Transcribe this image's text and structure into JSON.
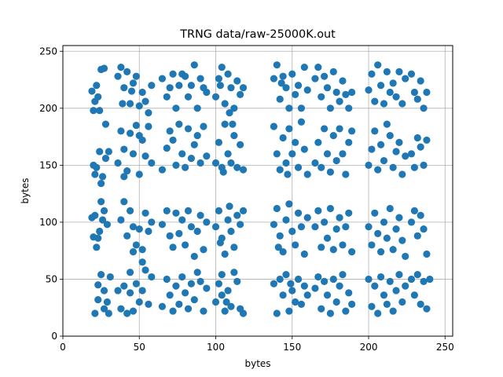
{
  "chart_data": {
    "type": "scatter",
    "title": "TRNG data/raw-25000K.out",
    "xlabel": "bytes",
    "ylabel": "bytes",
    "xlim": [
      0,
      255
    ],
    "ylim": [
      0,
      255
    ],
    "xticks": [
      0,
      50,
      100,
      150,
      200,
      250
    ],
    "yticks": [
      0,
      50,
      100,
      150,
      200,
      250
    ],
    "grid": true,
    "marker_color": "#1f77b4",
    "points": [
      [
        19,
        215
      ],
      [
        21,
        206
      ],
      [
        22,
        220
      ],
      [
        24,
        198
      ],
      [
        25,
        234
      ],
      [
        27,
        235
      ],
      [
        20,
        198
      ],
      [
        23,
        210
      ],
      [
        28,
        186
      ],
      [
        20,
        150
      ],
      [
        22,
        148
      ],
      [
        24,
        162
      ],
      [
        26,
        140
      ],
      [
        28,
        156
      ],
      [
        30,
        162
      ],
      [
        25,
        134
      ],
      [
        21,
        142
      ],
      [
        19,
        104
      ],
      [
        21,
        106
      ],
      [
        23,
        86
      ],
      [
        25,
        118
      ],
      [
        27,
        110
      ],
      [
        29,
        98
      ],
      [
        22,
        78
      ],
      [
        24,
        92
      ],
      [
        26,
        102
      ],
      [
        20,
        87
      ],
      [
        21,
        20
      ],
      [
        23,
        45
      ],
      [
        25,
        54
      ],
      [
        27,
        40
      ],
      [
        29,
        30
      ],
      [
        31,
        52
      ],
      [
        23,
        32
      ],
      [
        30,
        20
      ],
      [
        27,
        24
      ],
      [
        36,
        228
      ],
      [
        38,
        236
      ],
      [
        40,
        218
      ],
      [
        42,
        232
      ],
      [
        44,
        204
      ],
      [
        46,
        222
      ],
      [
        48,
        228
      ],
      [
        52,
        214
      ],
      [
        54,
        206
      ],
      [
        56,
        196
      ],
      [
        58,
        220
      ],
      [
        39,
        204
      ],
      [
        45,
        215
      ],
      [
        50,
        202
      ],
      [
        36,
        152
      ],
      [
        38,
        180
      ],
      [
        40,
        164
      ],
      [
        42,
        145
      ],
      [
        44,
        178
      ],
      [
        46,
        160
      ],
      [
        48,
        185
      ],
      [
        50,
        176
      ],
      [
        52,
        172
      ],
      [
        54,
        158
      ],
      [
        56,
        184
      ],
      [
        58,
        152
      ],
      [
        40,
        140
      ],
      [
        50,
        142
      ],
      [
        38,
        102
      ],
      [
        40,
        118
      ],
      [
        42,
        88
      ],
      [
        44,
        110
      ],
      [
        46,
        96
      ],
      [
        48,
        80
      ],
      [
        50,
        94
      ],
      [
        52,
        76
      ],
      [
        54,
        108
      ],
      [
        56,
        92
      ],
      [
        58,
        100
      ],
      [
        46,
        74
      ],
      [
        52,
        65
      ],
      [
        36,
        40
      ],
      [
        38,
        24
      ],
      [
        40,
        44
      ],
      [
        42,
        20
      ],
      [
        44,
        38
      ],
      [
        46,
        22
      ],
      [
        48,
        46
      ],
      [
        50,
        30
      ],
      [
        52,
        40
      ],
      [
        54,
        58
      ],
      [
        56,
        28
      ],
      [
        58,
        52
      ],
      [
        44,
        56
      ],
      [
        65,
        226
      ],
      [
        68,
        210
      ],
      [
        70,
        218
      ],
      [
        72,
        230
      ],
      [
        74,
        200
      ],
      [
        76,
        220
      ],
      [
        78,
        230
      ],
      [
        80,
        228
      ],
      [
        82,
        210
      ],
      [
        84,
        220
      ],
      [
        86,
        238
      ],
      [
        88,
        200
      ],
      [
        90,
        226
      ],
      [
        92,
        218
      ],
      [
        94,
        214
      ],
      [
        65,
        146
      ],
      [
        68,
        165
      ],
      [
        70,
        180
      ],
      [
        72,
        172
      ],
      [
        74,
        150
      ],
      [
        76,
        186
      ],
      [
        78,
        160
      ],
      [
        80,
        148
      ],
      [
        82,
        182
      ],
      [
        84,
        156
      ],
      [
        86,
        168
      ],
      [
        88,
        176
      ],
      [
        90,
        152
      ],
      [
        92,
        184
      ],
      [
        94,
        158
      ],
      [
        65,
        98
      ],
      [
        68,
        110
      ],
      [
        70,
        88
      ],
      [
        72,
        78
      ],
      [
        74,
        108
      ],
      [
        76,
        90
      ],
      [
        78,
        102
      ],
      [
        80,
        80
      ],
      [
        82,
        110
      ],
      [
        84,
        96
      ],
      [
        86,
        70
      ],
      [
        88,
        92
      ],
      [
        90,
        106
      ],
      [
        92,
        76
      ],
      [
        94,
        100
      ],
      [
        65,
        26
      ],
      [
        68,
        50
      ],
      [
        70,
        36
      ],
      [
        72,
        22
      ],
      [
        74,
        44
      ],
      [
        76,
        28
      ],
      [
        78,
        52
      ],
      [
        80,
        38
      ],
      [
        82,
        24
      ],
      [
        84,
        46
      ],
      [
        86,
        32
      ],
      [
        88,
        56
      ],
      [
        90,
        48
      ],
      [
        92,
        22
      ],
      [
        94,
        42
      ],
      [
        100,
        210
      ],
      [
        102,
        226
      ],
      [
        104,
        236
      ],
      [
        106,
        204
      ],
      [
        108,
        230
      ],
      [
        110,
        218
      ],
      [
        112,
        200
      ],
      [
        114,
        224
      ],
      [
        116,
        212
      ],
      [
        118,
        218
      ],
      [
        103,
        220
      ],
      [
        109,
        196
      ],
      [
        100,
        152
      ],
      [
        102,
        170
      ],
      [
        104,
        148
      ],
      [
        106,
        186
      ],
      [
        108,
        160
      ],
      [
        110,
        152
      ],
      [
        112,
        176
      ],
      [
        114,
        148
      ],
      [
        116,
        168
      ],
      [
        118,
        146
      ],
      [
        105,
        144
      ],
      [
        111,
        186
      ],
      [
        100,
        96
      ],
      [
        102,
        110
      ],
      [
        104,
        86
      ],
      [
        106,
        72
      ],
      [
        108,
        102
      ],
      [
        110,
        92
      ],
      [
        112,
        78
      ],
      [
        114,
        106
      ],
      [
        116,
        98
      ],
      [
        118,
        110
      ],
      [
        103,
        82
      ],
      [
        109,
        114
      ],
      [
        100,
        30
      ],
      [
        102,
        46
      ],
      [
        104,
        54
      ],
      [
        106,
        22
      ],
      [
        108,
        40
      ],
      [
        110,
        26
      ],
      [
        112,
        56
      ],
      [
        114,
        48
      ],
      [
        116,
        24
      ],
      [
        118,
        20
      ],
      [
        104,
        36
      ],
      [
        107,
        30
      ],
      [
        138,
        226
      ],
      [
        140,
        238
      ],
      [
        142,
        208
      ],
      [
        144,
        228
      ],
      [
        146,
        218
      ],
      [
        148,
        200
      ],
      [
        150,
        230
      ],
      [
        152,
        212
      ],
      [
        154,
        220
      ],
      [
        156,
        200
      ],
      [
        158,
        236
      ],
      [
        160,
        216
      ],
      [
        143,
        222
      ],
      [
        138,
        184
      ],
      [
        140,
        160
      ],
      [
        142,
        146
      ],
      [
        144,
        174
      ],
      [
        146,
        152
      ],
      [
        148,
        182
      ],
      [
        150,
        160
      ],
      [
        152,
        170
      ],
      [
        154,
        148
      ],
      [
        156,
        188
      ],
      [
        158,
        164
      ],
      [
        160,
        142
      ],
      [
        147,
        142
      ],
      [
        138,
        98
      ],
      [
        140,
        112
      ],
      [
        142,
        88
      ],
      [
        144,
        74
      ],
      [
        146,
        102
      ],
      [
        148,
        116
      ],
      [
        150,
        92
      ],
      [
        152,
        80
      ],
      [
        154,
        108
      ],
      [
        156,
        96
      ],
      [
        158,
        72
      ],
      [
        160,
        104
      ],
      [
        141,
        78
      ],
      [
        138,
        46
      ],
      [
        140,
        20
      ],
      [
        142,
        50
      ],
      [
        144,
        36
      ],
      [
        146,
        54
      ],
      [
        148,
        22
      ],
      [
        150,
        40
      ],
      [
        152,
        30
      ],
      [
        154,
        50
      ],
      [
        156,
        28
      ],
      [
        158,
        44
      ],
      [
        160,
        36
      ],
      [
        149,
        46
      ],
      [
        165,
        226
      ],
      [
        167,
        236
      ],
      [
        169,
        210
      ],
      [
        171,
        228
      ],
      [
        173,
        218
      ],
      [
        175,
        200
      ],
      [
        177,
        232
      ],
      [
        179,
        214
      ],
      [
        181,
        206
      ],
      [
        183,
        224
      ],
      [
        185,
        212
      ],
      [
        187,
        200
      ],
      [
        189,
        214
      ],
      [
        165,
        152
      ],
      [
        167,
        170
      ],
      [
        169,
        148
      ],
      [
        171,
        182
      ],
      [
        173,
        160
      ],
      [
        175,
        144
      ],
      [
        177,
        176
      ],
      [
        179,
        154
      ],
      [
        181,
        182
      ],
      [
        183,
        160
      ],
      [
        185,
        142
      ],
      [
        187,
        170
      ],
      [
        189,
        180
      ],
      [
        165,
        96
      ],
      [
        167,
        110
      ],
      [
        169,
        78
      ],
      [
        171,
        100
      ],
      [
        173,
        86
      ],
      [
        175,
        112
      ],
      [
        177,
        76
      ],
      [
        179,
        94
      ],
      [
        181,
        104
      ],
      [
        183,
        80
      ],
      [
        185,
        96
      ],
      [
        187,
        108
      ],
      [
        189,
        74
      ],
      [
        165,
        42
      ],
      [
        167,
        52
      ],
      [
        169,
        24
      ],
      [
        171,
        48
      ],
      [
        173,
        36
      ],
      [
        175,
        20
      ],
      [
        177,
        50
      ],
      [
        179,
        30
      ],
      [
        181,
        44
      ],
      [
        183,
        54
      ],
      [
        185,
        22
      ],
      [
        187,
        38
      ],
      [
        189,
        28
      ],
      [
        200,
        216
      ],
      [
        202,
        230
      ],
      [
        204,
        206
      ],
      [
        206,
        238
      ],
      [
        208,
        220
      ],
      [
        210,
        204
      ],
      [
        212,
        232
      ],
      [
        214,
        214
      ],
      [
        216,
        222
      ],
      [
        218,
        210
      ],
      [
        220,
        232
      ],
      [
        222,
        204
      ],
      [
        224,
        226
      ],
      [
        200,
        150
      ],
      [
        202,
        164
      ],
      [
        204,
        180
      ],
      [
        206,
        146
      ],
      [
        208,
        168
      ],
      [
        210,
        154
      ],
      [
        212,
        186
      ],
      [
        214,
        176
      ],
      [
        216,
        148
      ],
      [
        218,
        162
      ],
      [
        220,
        170
      ],
      [
        222,
        142
      ],
      [
        224,
        158
      ],
      [
        200,
        96
      ],
      [
        202,
        80
      ],
      [
        204,
        108
      ],
      [
        206,
        90
      ],
      [
        208,
        74
      ],
      [
        210,
        100
      ],
      [
        212,
        86
      ],
      [
        214,
        112
      ],
      [
        216,
        76
      ],
      [
        218,
        94
      ],
      [
        220,
        104
      ],
      [
        222,
        84
      ],
      [
        224,
        70
      ],
      [
        200,
        50
      ],
      [
        202,
        26
      ],
      [
        204,
        44
      ],
      [
        206,
        20
      ],
      [
        208,
        52
      ],
      [
        210,
        36
      ],
      [
        212,
        28
      ],
      [
        214,
        48
      ],
      [
        216,
        22
      ],
      [
        218,
        40
      ],
      [
        220,
        54
      ],
      [
        222,
        30
      ],
      [
        224,
        44
      ],
      [
        228,
        230
      ],
      [
        230,
        214
      ],
      [
        232,
        208
      ],
      [
        234,
        224
      ],
      [
        236,
        200
      ],
      [
        238,
        214
      ],
      [
        228,
        160
      ],
      [
        230,
        148
      ],
      [
        232,
        174
      ],
      [
        234,
        166
      ],
      [
        236,
        150
      ],
      [
        238,
        172
      ],
      [
        228,
        100
      ],
      [
        230,
        110
      ],
      [
        232,
        88
      ],
      [
        234,
        106
      ],
      [
        236,
        94
      ],
      [
        238,
        72
      ],
      [
        228,
        50
      ],
      [
        230,
        36
      ],
      [
        232,
        54
      ],
      [
        234,
        28
      ],
      [
        236,
        48
      ],
      [
        238,
        24
      ],
      [
        240,
        50
      ]
    ]
  }
}
